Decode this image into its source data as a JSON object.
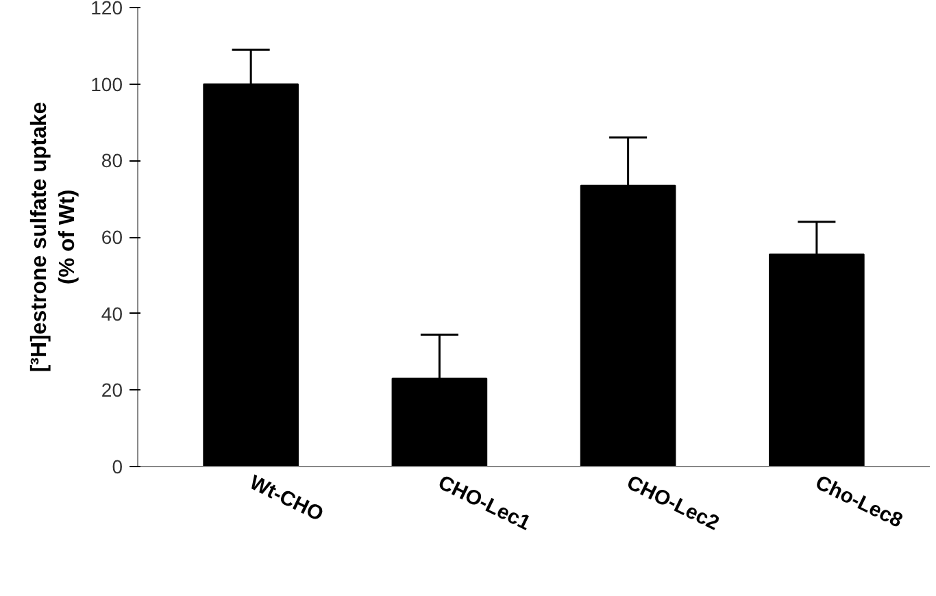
{
  "chart_data": {
    "type": "bar",
    "ylabel": "[³H]estrone sulfate uptake\n(% of Wt)",
    "categories": [
      "Wt-CHO",
      "CHO-Lec1",
      "CHO-Lec2",
      "Cho-Lec8"
    ],
    "values": [
      100,
      23,
      73.5,
      55.5
    ],
    "errors": [
      [
        100,
        109
      ],
      [
        23,
        34.5
      ],
      [
        73.5,
        86
      ],
      [
        55.5,
        64
      ]
    ],
    "color": "#000000",
    "ylim": [
      0,
      120
    ],
    "yticks": [
      0,
      20,
      40,
      60,
      80,
      100,
      120
    ],
    "grid": false
  }
}
